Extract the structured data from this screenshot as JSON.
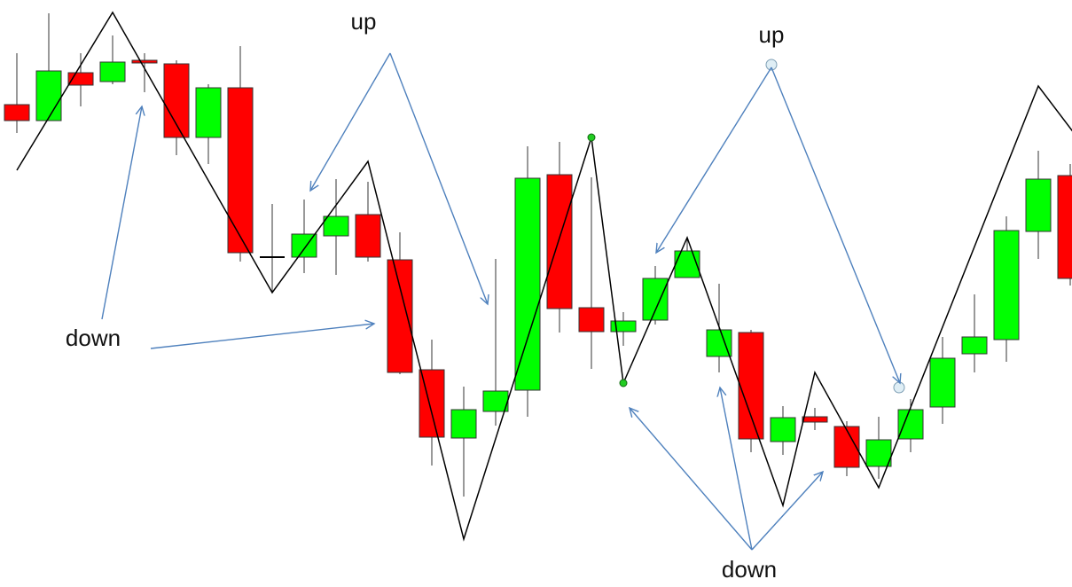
{
  "chart_data": {
    "type": "candlestick",
    "annotations": [
      "up",
      "up",
      "down",
      "down"
    ],
    "candles": {
      "open": [
        544,
        526,
        580,
        570,
        594,
        590,
        507,
        563,
        372,
        372,
        396,
        420,
        369,
        245,
        168,
        198,
        222,
        465,
        315,
        288,
        301,
        349,
        260,
        287,
        164,
        192,
        181,
        136,
        167,
        203,
        263,
        279,
        401,
        464
      ],
      "high": [
        602,
        647,
        602,
        622,
        602,
        594,
        567,
        610,
        432,
        437,
        460,
        457,
        400,
        279,
        226,
        370,
        497,
        502,
        462,
        310,
        362,
        394,
        342,
        290,
        204,
        202,
        187,
        192,
        212,
        282,
        330,
        418,
        492,
        477
      ],
      "low": [
        512,
        526,
        542,
        567,
        558,
        487,
        477,
        367,
        332,
        354,
        352,
        367,
        240,
        137,
        102,
        182,
        192,
        287,
        246,
        272,
        296,
        349,
        242,
        152,
        149,
        177,
        125,
        122,
        152,
        184,
        242,
        254,
        370,
        340
      ],
      "close": [
        526,
        582,
        566,
        592,
        591,
        507,
        563,
        377,
        372,
        398,
        418,
        372,
        242,
        169,
        200,
        221,
        461,
        314,
        288,
        300,
        348,
        379,
        290,
        167,
        191,
        186,
        135,
        166,
        200,
        258,
        282,
        402,
        460,
        348
      ]
    },
    "up_color": "#00ff00",
    "down_color": "#ff0000",
    "zigzag": {
      "color": "#000000",
      "x": [
        0,
        3,
        8,
        11,
        14,
        18,
        19,
        21,
        24,
        25,
        27,
        32,
        34
      ],
      "values": [
        470,
        648,
        332,
        480,
        54,
        507,
        230,
        394,
        92,
        242,
        112,
        565,
        470
      ]
    },
    "ylim": [
      0,
      662
    ]
  }
}
